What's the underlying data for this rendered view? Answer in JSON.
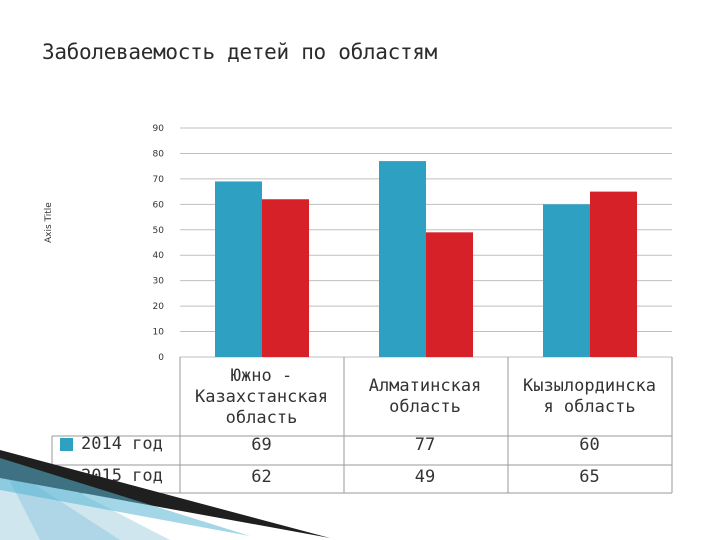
{
  "title": "Заболеваемость детей по областям",
  "chart_data": {
    "type": "bar",
    "categories": [
      "Южно - Казахстанская область",
      "Алматинская область",
      "Кызылординска я область"
    ],
    "series": [
      {
        "name": "2014 год",
        "values": [
          69,
          77,
          60
        ],
        "color": "#2ea1c2"
      },
      {
        "name": "2015 год",
        "values": [
          62,
          49,
          65
        ],
        "color": "#d62128"
      }
    ],
    "title": "Заболеваемость детей по областям",
    "xlabel": "",
    "ylabel": "Axis Title",
    "ylim": [
      0,
      90
    ],
    "yticks": [
      0,
      10,
      20,
      30,
      40,
      50,
      60,
      70,
      80,
      90
    ],
    "grid": true,
    "legend": "data-table-left"
  },
  "category_lines": [
    "Южно -\nКазахстанская\nобласть",
    "Алматинская\nобласть",
    "Кызылординска\nя область"
  ]
}
